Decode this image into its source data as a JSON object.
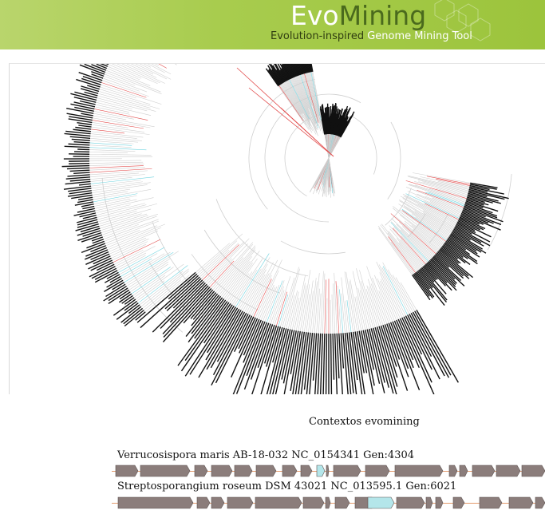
{
  "header": {
    "logo_part1": "Evo",
    "logo_part2": "Mining",
    "tagline_part1": "Evolution-inspired ",
    "tagline_part2": "Genome Mining Tool"
  },
  "colors": {
    "header_green": "#a8cc4e",
    "gene_fill": "#8b7d7b",
    "gene_highlight": "#b4e6ea",
    "track_line": "#e39a6b",
    "branch": "#cfcfcf",
    "branch_red": "#e24b4b",
    "branch_cyan": "#6fd3df"
  },
  "contexts": {
    "title": "Contextos evomining",
    "organisms": [
      {
        "name": "Verrucosispora maris AB-18-032 NC_0154341 Gen:4304"
      },
      {
        "name": "Streptosporangium roseum DSM 43021 NC_013595.1 Gen:6021"
      }
    ]
  }
}
